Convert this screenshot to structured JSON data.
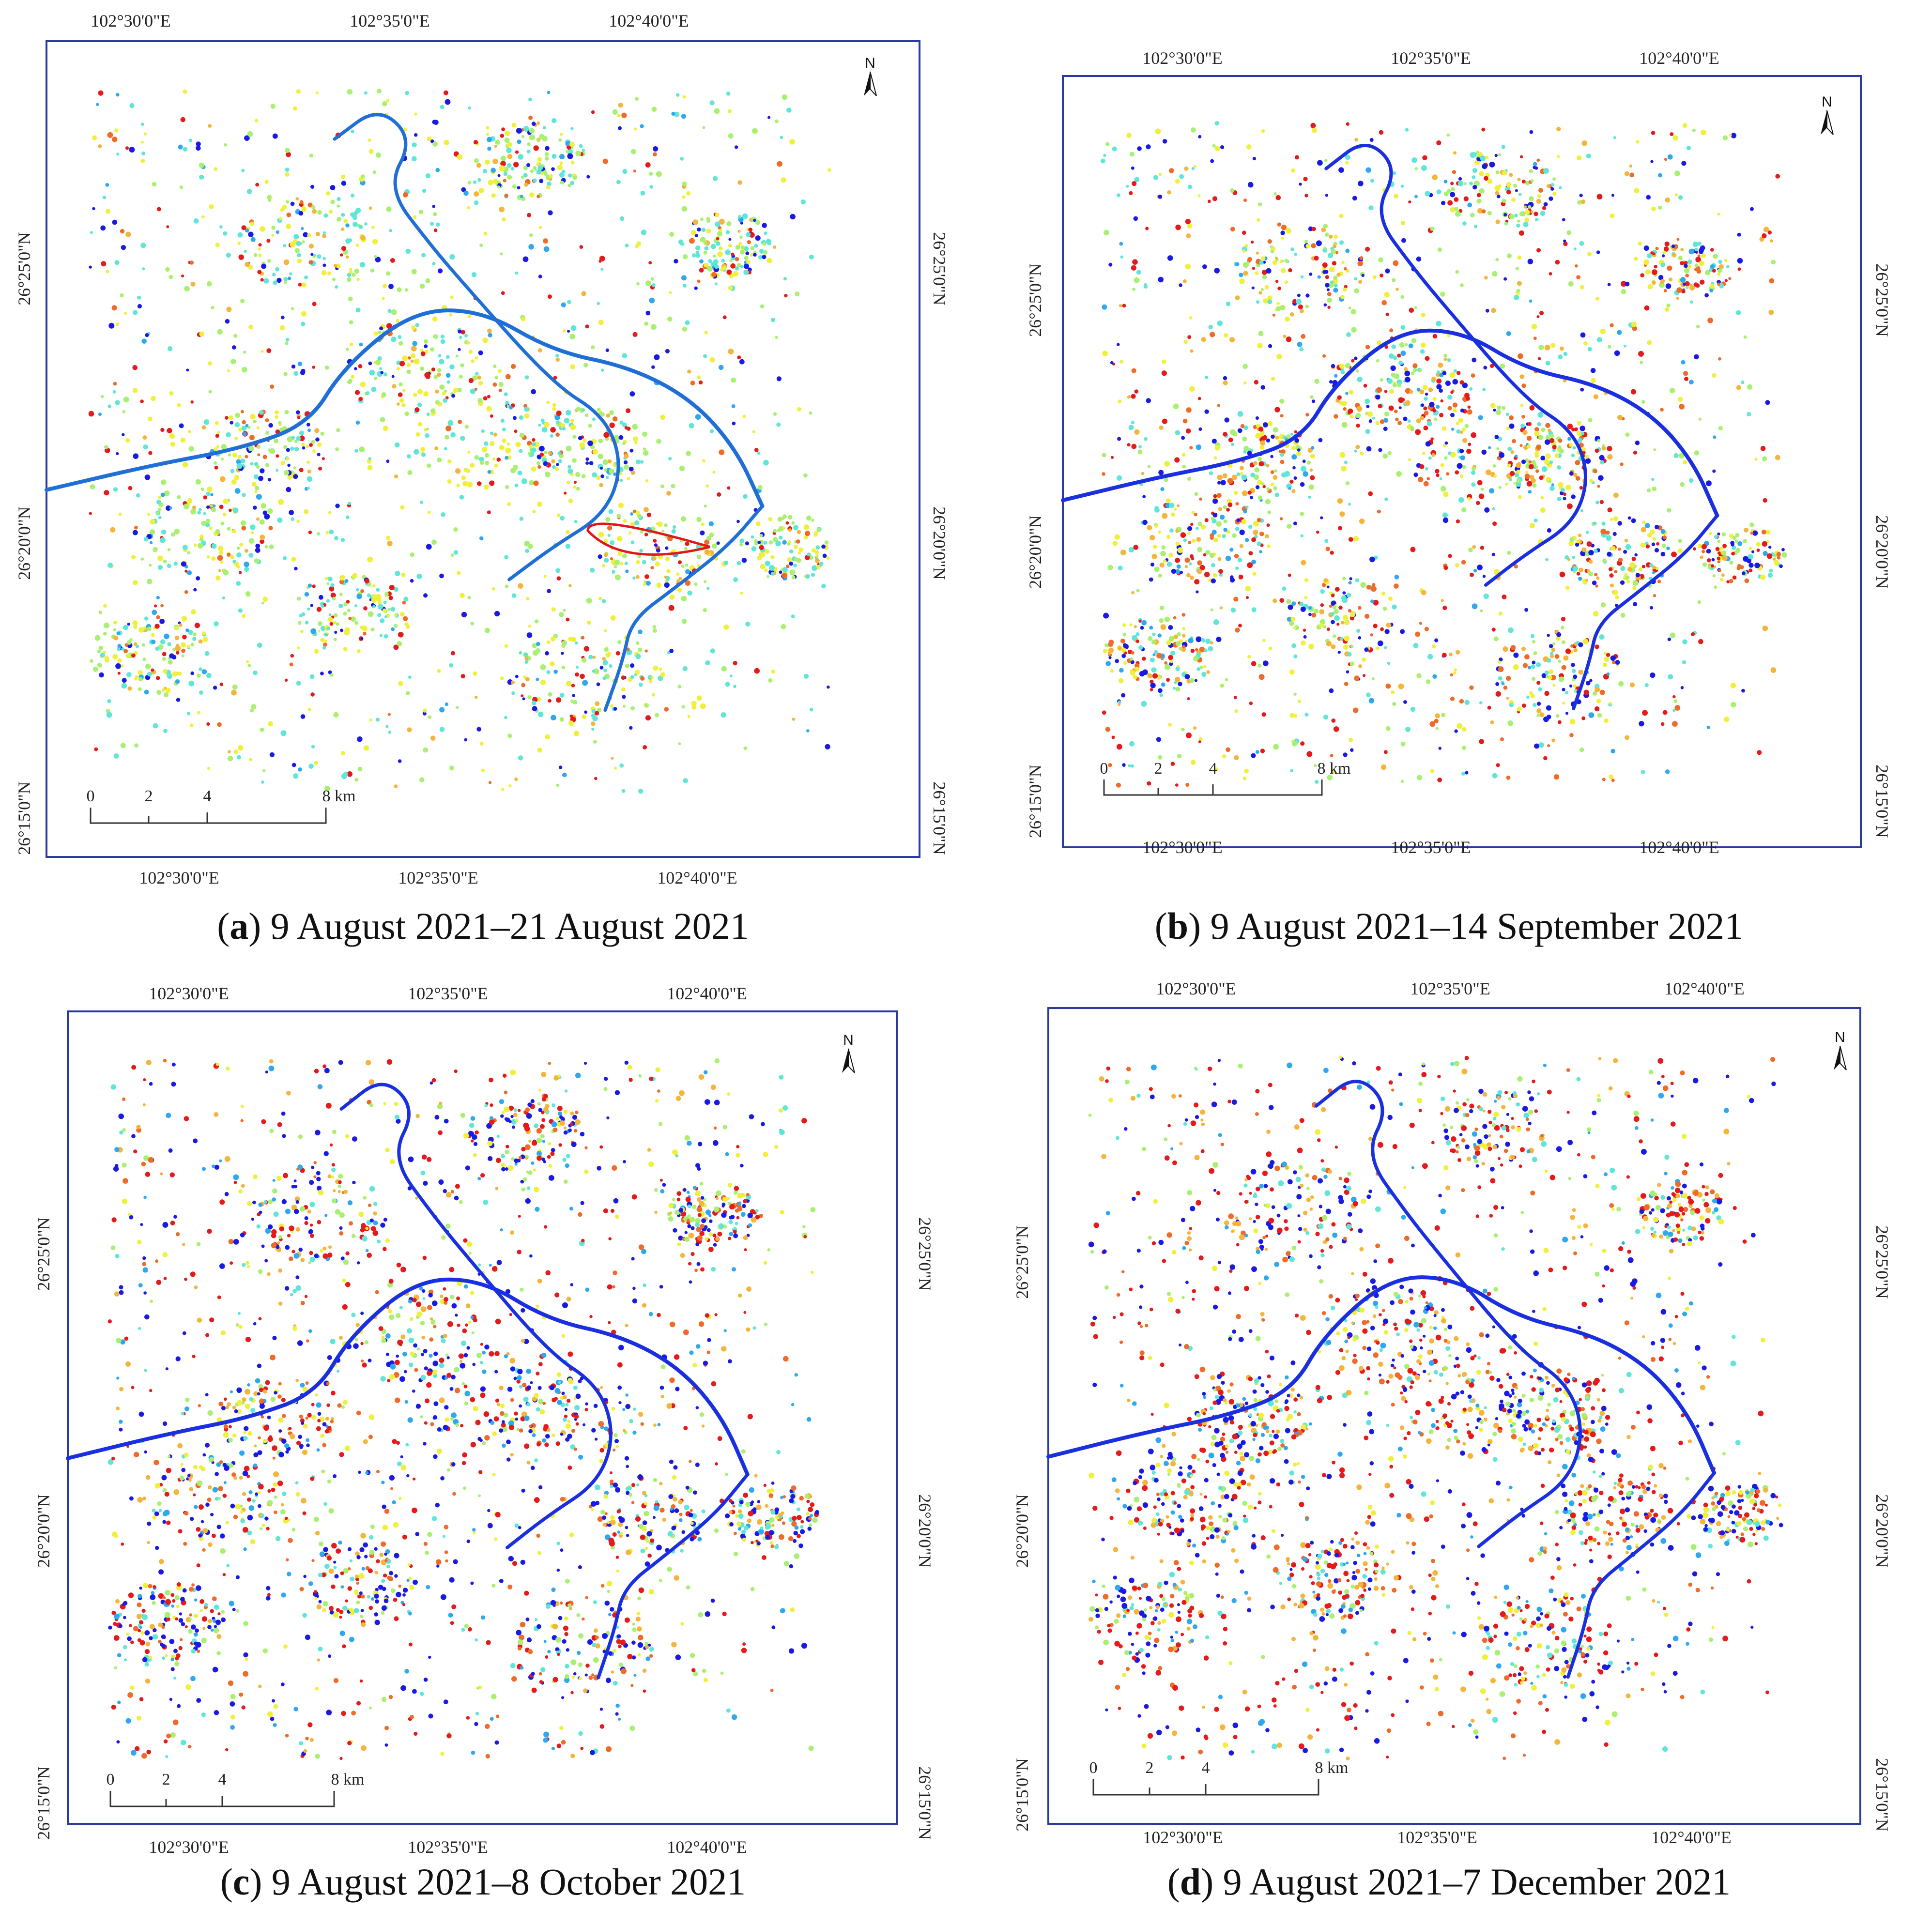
{
  "panels": [
    {
      "id": "a",
      "letter": "a",
      "caption": "9 August 2021–21 August 2021",
      "top_lon_labels": [
        "102°30'0\"E",
        "102°35'0\"E",
        "102°40'0\"E"
      ],
      "bottom_lon_labels": [
        "102°30'0\"E",
        "102°35'0\"E",
        "102°40'0\"E"
      ],
      "left_lat_labels": [
        "26°25'0\"N",
        "26°20'0\"N",
        "26°15'0\"N"
      ],
      "right_lat_labels": [
        "26°25'0\"N",
        "26°20'0\"N",
        "26°15'0\"N"
      ],
      "scale_labels": [
        "0",
        "2",
        "4",
        "8 km"
      ],
      "north_label": "N",
      "river_color": "#1f6fd6"
    },
    {
      "id": "b",
      "letter": "b",
      "caption": "9 August 2021–14 September 2021",
      "top_lon_labels": [
        "102°30'0\"E",
        "102°35'0\"E",
        "102°40'0\"E"
      ],
      "bottom_lon_labels": [
        "102°30'0\"E",
        "102°35'0\"E",
        "102°40'0\"E"
      ],
      "left_lat_labels": [
        "26°25'0\"N",
        "26°20'0\"N",
        "26°15'0\"N"
      ],
      "right_lat_labels": [
        "26°25'0\"N",
        "26°20'0\"N",
        "26°15'0\"N"
      ],
      "scale_labels": [
        "0",
        "2",
        "4",
        "8 km"
      ],
      "north_label": "N",
      "river_color": "#1a2fe0"
    },
    {
      "id": "c",
      "letter": "c",
      "caption": "9 August 2021–8 October 2021",
      "top_lon_labels": [
        "102°30'0\"E",
        "102°35'0\"E",
        "102°40'0\"E"
      ],
      "bottom_lon_labels": [
        "102°30'0\"E",
        "102°35'0\"E",
        "102°40'0\"E"
      ],
      "left_lat_labels": [
        "26°25'0\"N",
        "26°20'0\"N",
        "26°15'0\"N"
      ],
      "right_lat_labels": [
        "26°25'0\"N",
        "26°20'0\"N",
        "26°15'0\"N"
      ],
      "scale_labels": [
        "0",
        "2",
        "4",
        "8 km"
      ],
      "north_label": "N",
      "river_color": "#1a2fe0"
    },
    {
      "id": "d",
      "letter": "d",
      "caption": "9 August 2021–7 December 2021",
      "top_lon_labels": [
        "102°30'0\"E",
        "102°35'0\"E",
        "102°40'0\"E"
      ],
      "bottom_lon_labels": [
        "102°30'0\"E",
        "102°35'0\"E",
        "102°40'0\"E"
      ],
      "left_lat_labels": [
        "26°25'0\"N",
        "26°20'0\"N",
        "26°15'0\"N"
      ],
      "right_lat_labels": [
        "26°25'0\"N",
        "26°20'0\"N",
        "26°15'0\"N"
      ],
      "scale_labels": [
        "0",
        "2",
        "4",
        "8 km"
      ],
      "north_label": "N",
      "river_color": "#1a2fe0"
    }
  ],
  "point_palette": [
    "#1a1ae6",
    "#2fa8f0",
    "#5fe6d8",
    "#a8f070",
    "#f0f03a",
    "#f5b43a",
    "#f06a28",
    "#e61a1a"
  ],
  "palette_weights_by_panel": {
    "a": [
      2,
      1,
      5,
      5,
      5,
      1,
      1,
      2
    ],
    "b": [
      3,
      1,
      3,
      3,
      3,
      2,
      2,
      3
    ],
    "c": [
      5,
      2,
      2,
      2,
      2,
      2,
      2,
      4
    ],
    "d": [
      5,
      2,
      2,
      2,
      2,
      3,
      2,
      6
    ]
  },
  "highlight_line_color": "#e01818"
}
